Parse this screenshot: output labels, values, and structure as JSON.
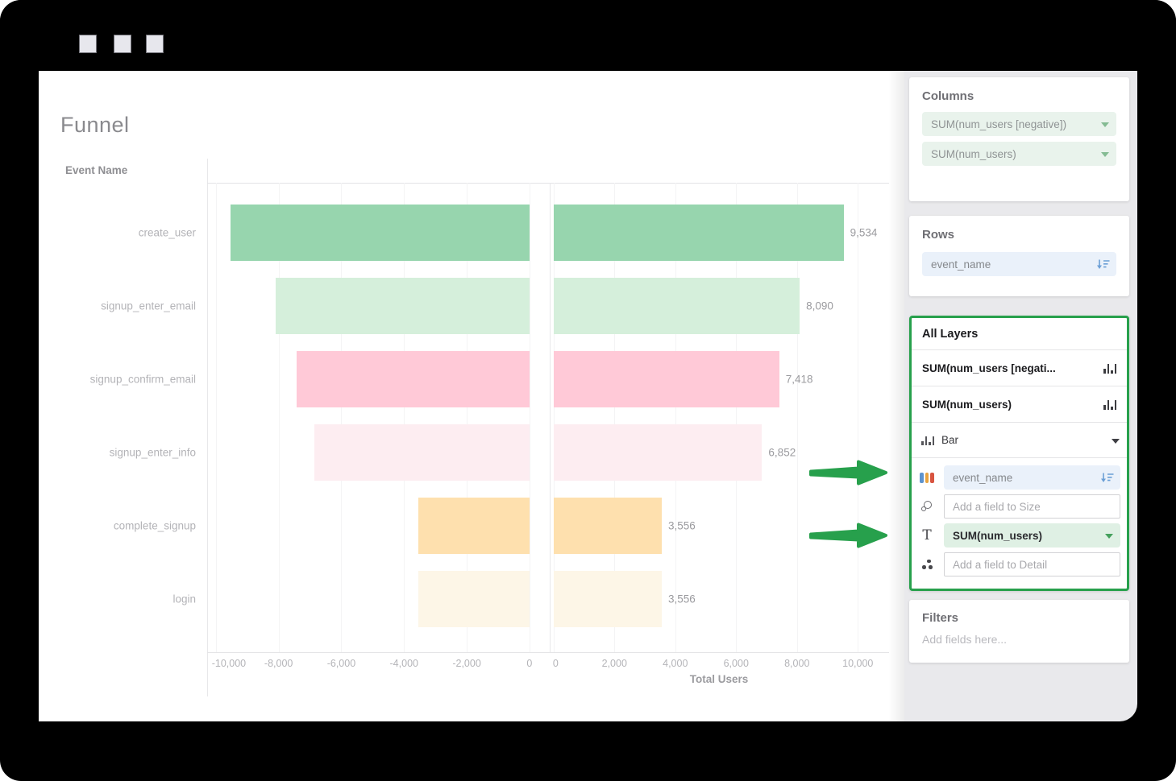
{
  "window": {
    "controls": [
      "window-button-1",
      "window-button-2",
      "window-button-3"
    ]
  },
  "chart": {
    "title": "Funnel",
    "row_header": "Event Name"
  },
  "chart_data": {
    "type": "bar",
    "orientation": "horizontal",
    "title": "Funnel",
    "row_header": "Event Name",
    "xlabel": "Total Users",
    "categories": [
      "create_user",
      "signup_enter_email",
      "signup_confirm_email",
      "signup_enter_info",
      "complete_signup",
      "login"
    ],
    "series": [
      {
        "name": "SUM(num_users [negative])",
        "values": [
          -9534,
          -8090,
          -7418,
          -6852,
          -3556,
          -3556
        ]
      },
      {
        "name": "SUM(num_users)",
        "values": [
          9534,
          8090,
          7418,
          6852,
          3556,
          3556
        ]
      }
    ],
    "bar_labels": [
      "9,534",
      "8,090",
      "7,418",
      "6,852",
      "3,556",
      "3,556"
    ],
    "bar_colors": [
      "#97d5ae",
      "#d5efdb",
      "#ffc9d7",
      "#fdedf1",
      "#fee0ae",
      "#fdf6e7"
    ],
    "left_axis": {
      "range": [
        -10150,
        620
      ],
      "tick_values": [
        -10000,
        -8000,
        -6000,
        -4000,
        -2000,
        0
      ],
      "tick_labels": [
        "-10,000",
        "-8,000",
        "-6,000",
        "-4,000",
        "-2,000",
        "0"
      ]
    },
    "right_axis": {
      "range": [
        -100,
        11000
      ],
      "tick_values": [
        0,
        2000,
        4000,
        6000,
        8000,
        10000
      ],
      "tick_labels": [
        "0",
        "2,000",
        "4,000",
        "6,000",
        "8,000",
        "10,000"
      ]
    },
    "gridlines": true,
    "legend": "none"
  },
  "sidebar": {
    "columns": {
      "title": "Columns",
      "pills": [
        "SUM(num_users [negative])",
        "SUM(num_users)"
      ]
    },
    "rows": {
      "title": "Rows",
      "pill": "event_name"
    },
    "all_layers": {
      "title": "All Layers",
      "layers": [
        "SUM(num_users [negati...",
        "SUM(num_users)"
      ],
      "mark_type": "Bar",
      "color_field": "event_name",
      "size_placeholder": "Add a field to Size",
      "label_field": "SUM(num_users)",
      "detail_placeholder": "Add a field to Detail"
    },
    "filters": {
      "title": "Filters",
      "placeholder": "Add fields here..."
    }
  },
  "colors": {
    "accent_green": "#27a04c",
    "sidebar_bg": "#e9e9ec",
    "pill_green_bg": "#e9f3ec",
    "pill_blue_bg": "#eaf1fa",
    "mark_label_pill_bg": "#dff0e4",
    "color_icon_bars": [
      "#5d93ce",
      "#e8a33e",
      "#d85440"
    ],
    "sort_icon_blue": "#6b9fd6"
  }
}
